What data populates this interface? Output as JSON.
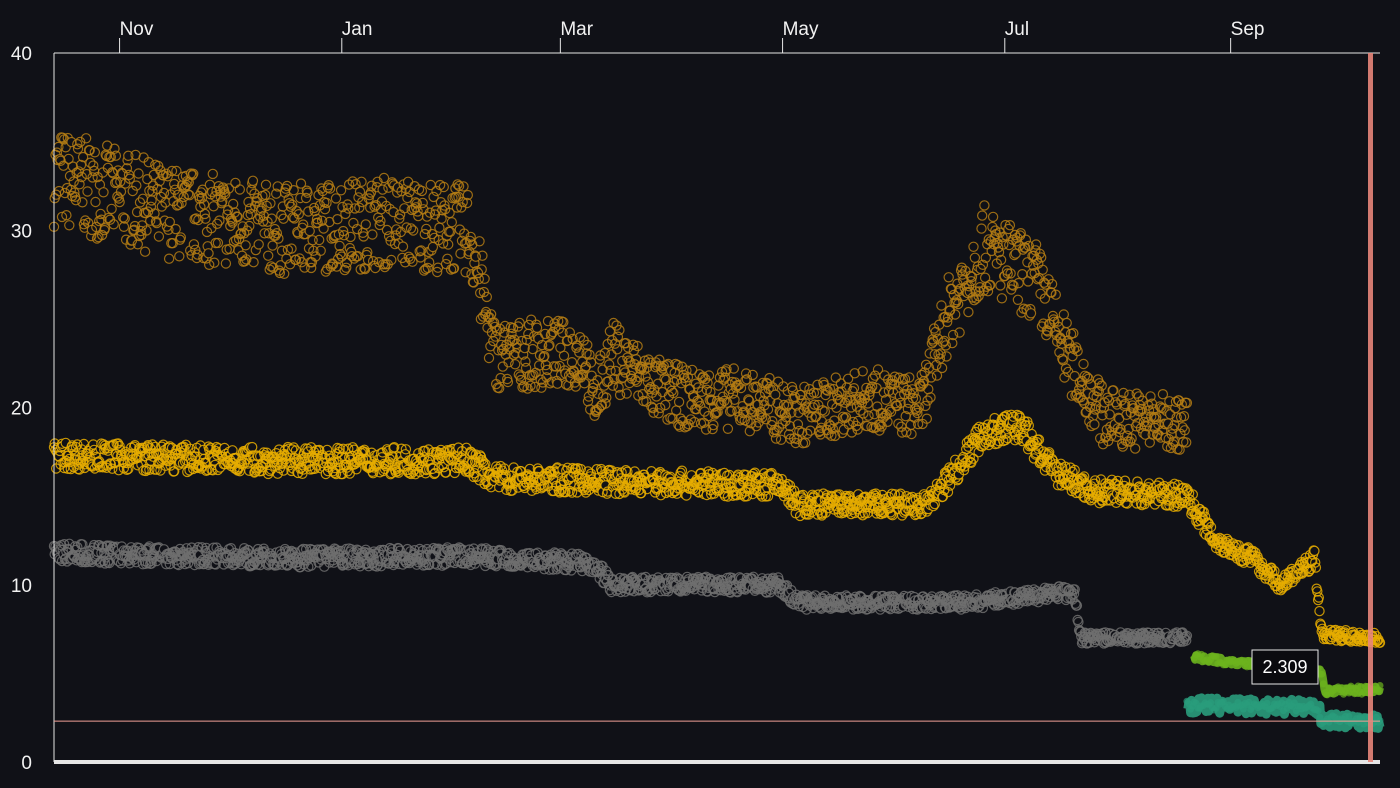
{
  "chart_data": {
    "type": "scatter",
    "x_range": [
      "2023-10-14",
      "2024-10-12"
    ],
    "x_ticks": [
      {
        "label": "Nov",
        "date": "2023-11-01"
      },
      {
        "label": "Jan",
        "date": "2024-01-01"
      },
      {
        "label": "Mar",
        "date": "2024-03-01"
      },
      {
        "label": "May",
        "date": "2024-05-01"
      },
      {
        "label": "Jul",
        "date": "2024-07-01"
      },
      {
        "label": "Sep",
        "date": "2024-09-01"
      }
    ],
    "ylim": [
      0,
      40
    ],
    "y_ticks": [
      0,
      10,
      20,
      30,
      40
    ],
    "grid": false,
    "legend": "none",
    "hover": {
      "date": "2024-10-07",
      "value": 2.309,
      "label": "2.309"
    },
    "series": [
      {
        "color": "#b47c14",
        "style": "marker",
        "points": [
          [
            "2023-10-14",
            33
          ],
          [
            "2023-11-15",
            31
          ],
          [
            "2023-12-15",
            30
          ],
          [
            "2024-01-15",
            30.5
          ],
          [
            "2024-02-05",
            30
          ],
          [
            "2024-02-12",
            23
          ],
          [
            "2024-03-08",
            23
          ],
          [
            "2024-03-10",
            20
          ],
          [
            "2024-03-15",
            23
          ],
          [
            "2024-03-28",
            21
          ],
          [
            "2024-04-05",
            20.5
          ],
          [
            "2024-04-20",
            20.5
          ],
          [
            "2024-05-05",
            19.5
          ],
          [
            "2024-05-25",
            20.5
          ],
          [
            "2024-06-08",
            20
          ],
          [
            "2024-06-15",
            25
          ],
          [
            "2024-06-25",
            29
          ],
          [
            "2024-07-10",
            27
          ],
          [
            "2024-07-18",
            23
          ],
          [
            "2024-07-28",
            19.5
          ],
          [
            "2024-08-20",
            19
          ]
        ]
      },
      {
        "color": "#e6ad00",
        "style": "marker",
        "points": [
          [
            "2023-10-14",
            17.3
          ],
          [
            "2023-12-15",
            17
          ],
          [
            "2024-02-05",
            17
          ],
          [
            "2024-02-12",
            16
          ],
          [
            "2024-03-20",
            15.8
          ],
          [
            "2024-05-01",
            15.6
          ],
          [
            "2024-05-05",
            14.5
          ],
          [
            "2024-06-10",
            14.5
          ],
          [
            "2024-06-25",
            18.5
          ],
          [
            "2024-07-05",
            19
          ],
          [
            "2024-07-14",
            16.5
          ],
          [
            "2024-07-25",
            15.3
          ],
          [
            "2024-08-20",
            15
          ],
          [
            "2024-08-28",
            12.5
          ],
          [
            "2024-09-07",
            11.5
          ],
          [
            "2024-09-15",
            10
          ],
          [
            "2024-09-24",
            11.5
          ],
          [
            "2024-09-26",
            7.2
          ],
          [
            "2024-10-12",
            7
          ]
        ]
      },
      {
        "color": "#6e6e6e",
        "style": "marker",
        "points": [
          [
            "2023-10-14",
            11.8
          ],
          [
            "2023-12-15",
            11.5
          ],
          [
            "2024-02-05",
            11.6
          ],
          [
            "2024-03-10",
            11.2
          ],
          [
            "2024-03-15",
            10
          ],
          [
            "2024-04-30",
            10
          ],
          [
            "2024-05-05",
            9
          ],
          [
            "2024-06-20",
            9
          ],
          [
            "2024-07-20",
            9.6
          ],
          [
            "2024-07-22",
            7
          ],
          [
            "2024-08-20",
            7
          ]
        ]
      },
      {
        "color": "#6cb41e",
        "style": "band",
        "points": [
          [
            "2024-08-22",
            5.9
          ],
          [
            "2024-09-26",
            5.1
          ],
          [
            "2024-09-27",
            4
          ],
          [
            "2024-10-12",
            4.1
          ]
        ]
      },
      {
        "color": "#2a9d7c",
        "style": "band",
        "points": [
          [
            "2024-08-20",
            3.2
          ],
          [
            "2024-09-25",
            3.1
          ],
          [
            "2024-09-26",
            2.4
          ],
          [
            "2024-10-12",
            2.3
          ]
        ]
      }
    ]
  }
}
